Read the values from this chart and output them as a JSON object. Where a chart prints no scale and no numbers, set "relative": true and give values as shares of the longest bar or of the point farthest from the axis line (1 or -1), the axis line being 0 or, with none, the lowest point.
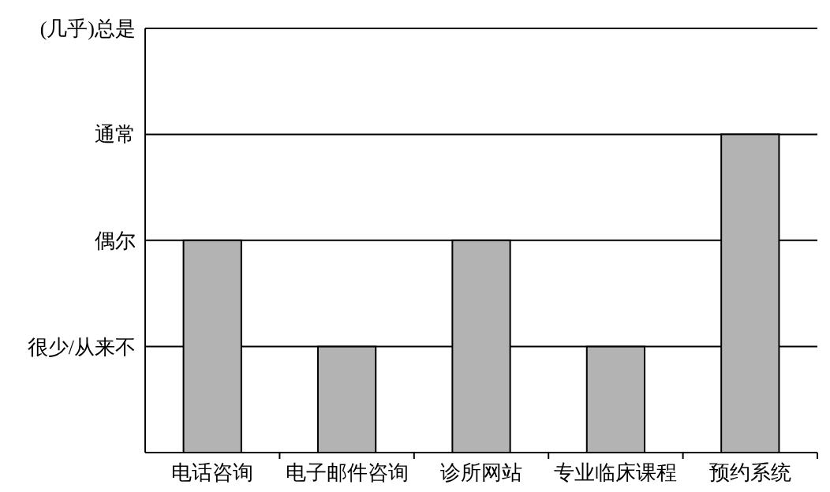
{
  "chart_data": {
    "type": "bar",
    "categories": [
      "电话咨询",
      "电子邮件咨询",
      "诊所网站",
      "专业临床课程",
      "预约系统"
    ],
    "values": [
      0.667,
      0.333,
      0.667,
      0.333,
      1
    ],
    "color": "#b3b3b3",
    "relative": true,
    "ref_lines": [
      {
        "axis": "y",
        "value": 1.333,
        "label": "(几乎)总是",
        "color": "#000000"
      },
      {
        "axis": "y",
        "value": 1,
        "label": "通常",
        "color": "#000000"
      },
      {
        "axis": "y",
        "value": 0.667,
        "label": "偶尔",
        "color": "#000000"
      },
      {
        "axis": "y",
        "value": 0.333,
        "label": "很少/从来不",
        "color": "#000000"
      }
    ]
  }
}
